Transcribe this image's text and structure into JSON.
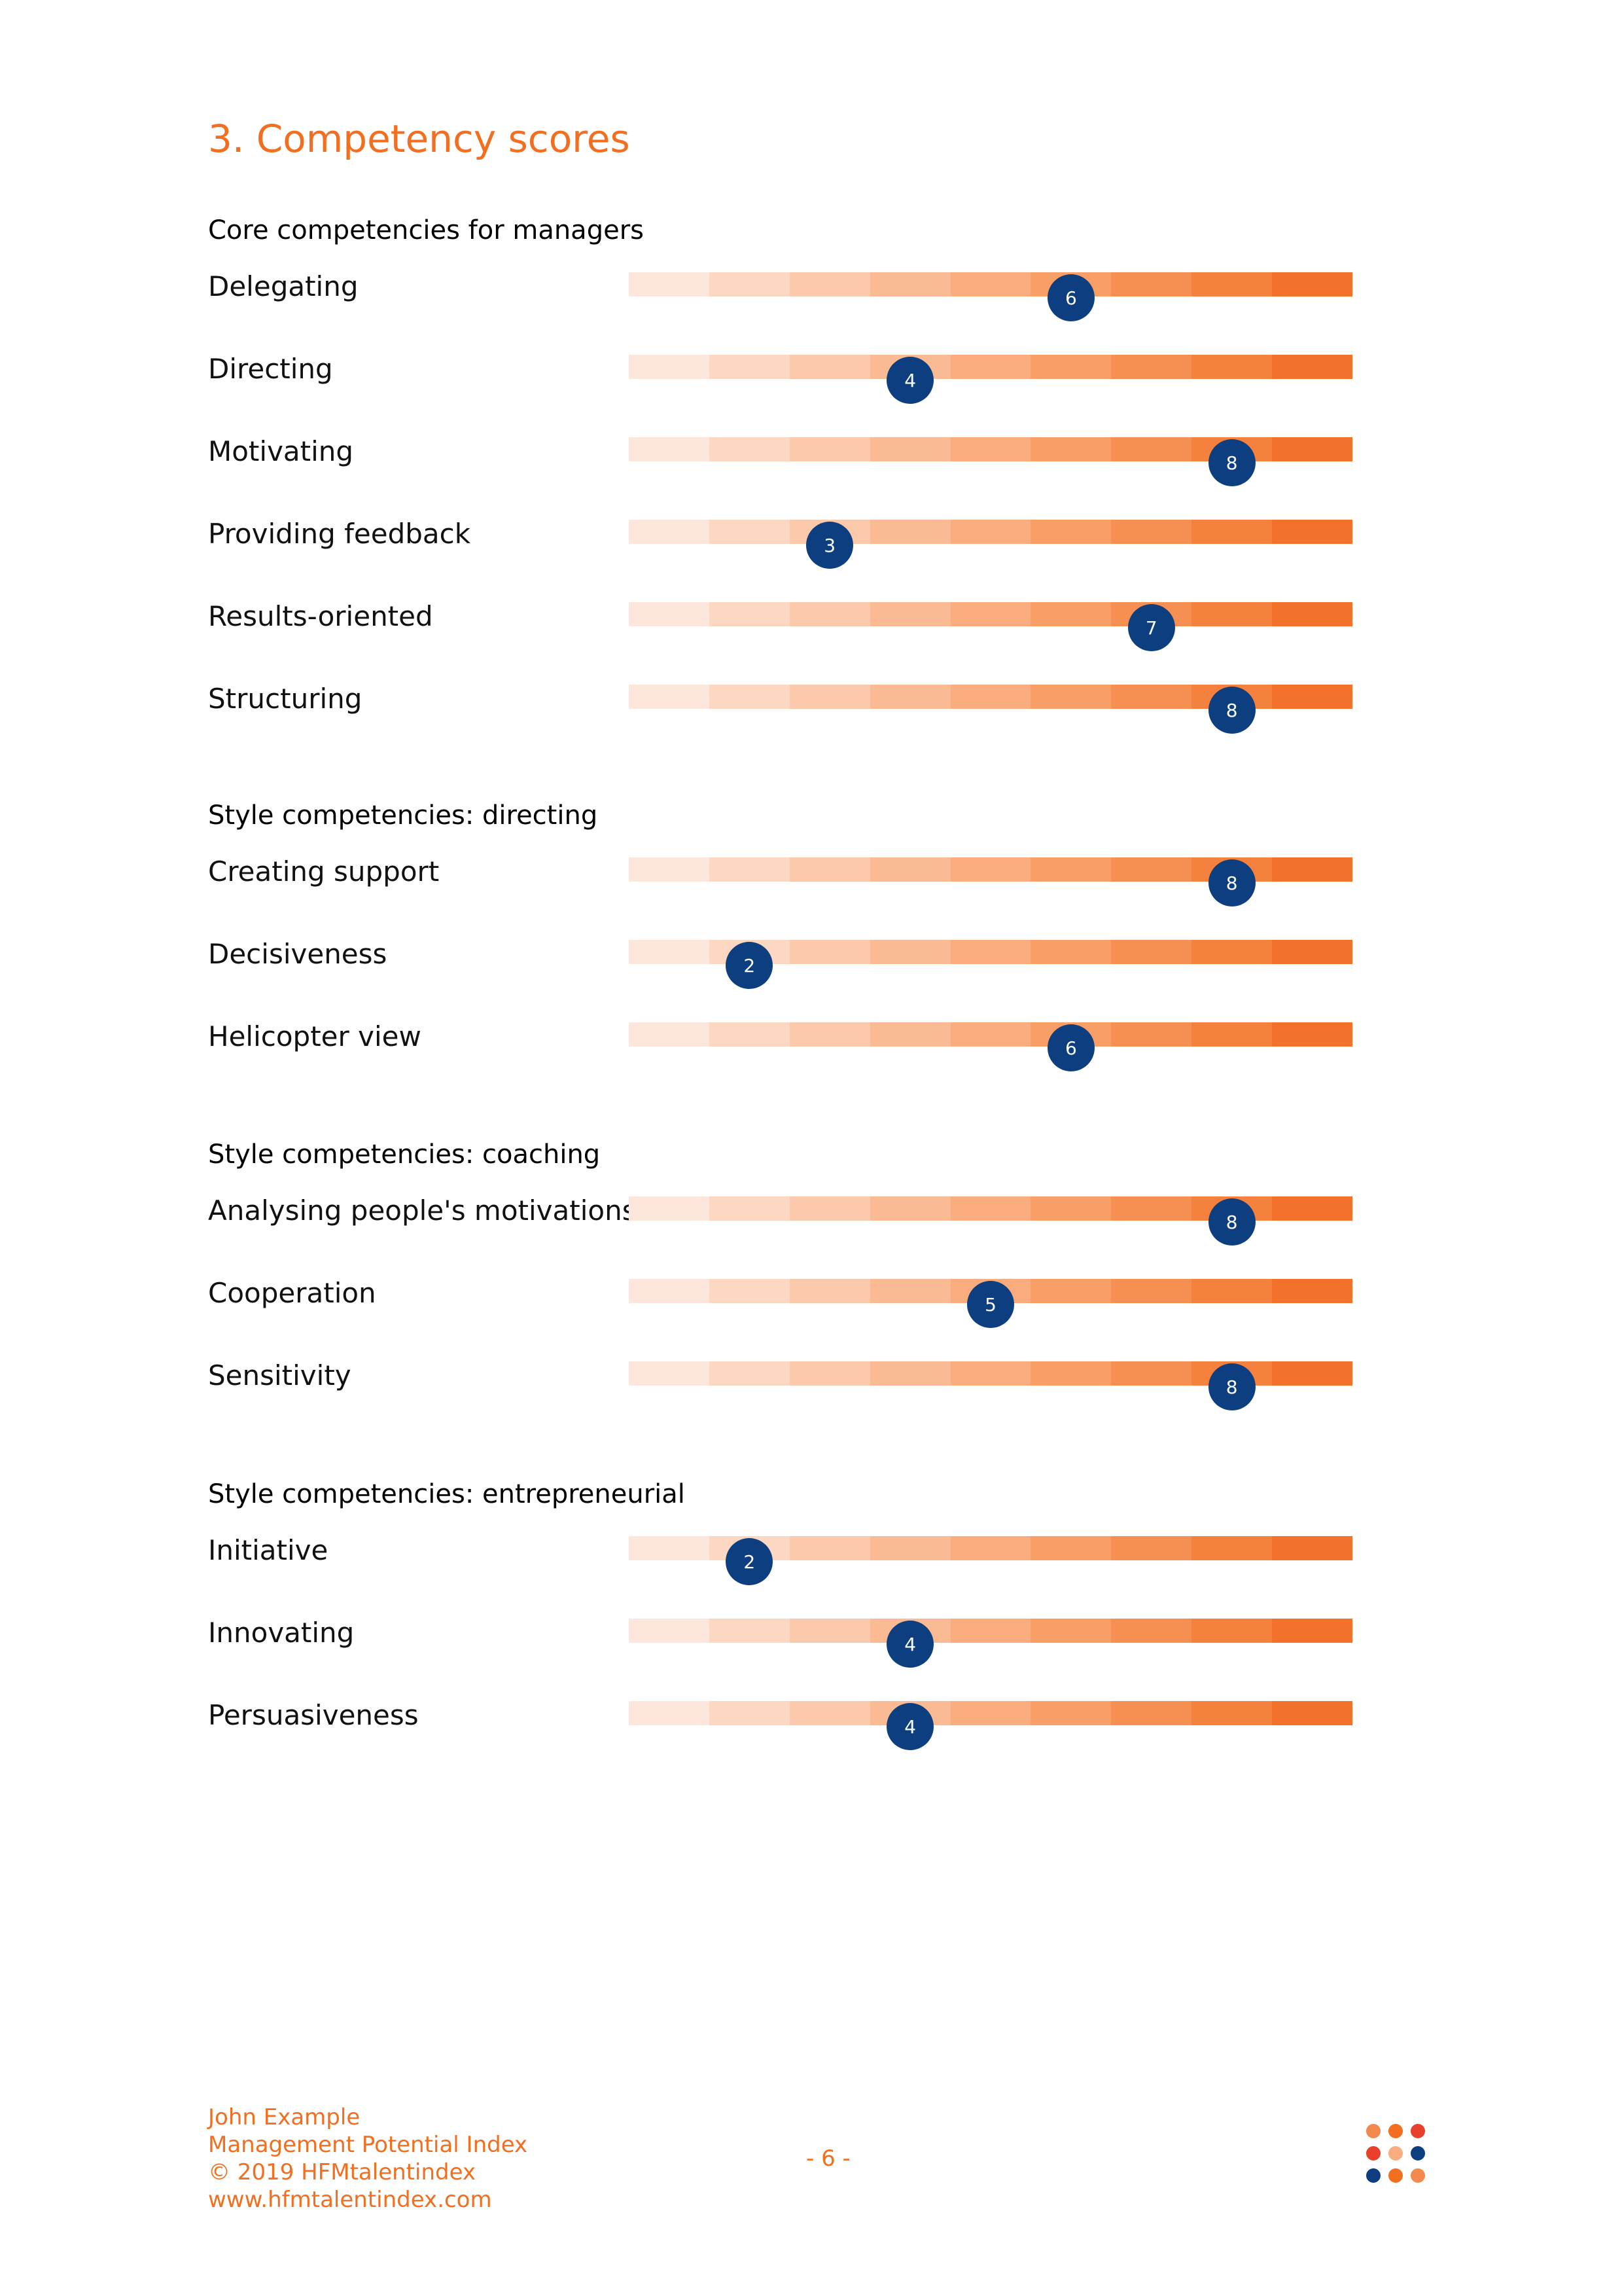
{
  "page_title": "3. Competency scores",
  "scale_colors": [
    "#fde7dc",
    "#fcd8c3",
    "#fbc9ab",
    "#fabb94",
    "#f9ac7d",
    "#f89e67",
    "#f68f52",
    "#f5813e",
    "#f3722b"
  ],
  "scale_max": 9,
  "marker_color": "#0d3f80",
  "sections": [
    {
      "heading": "Core competencies for managers",
      "items": [
        {
          "label": "Delegating",
          "score": 6
        },
        {
          "label": "Directing",
          "score": 4
        },
        {
          "label": "Motivating",
          "score": 8
        },
        {
          "label": "Providing feedback",
          "score": 3
        },
        {
          "label": "Results-oriented",
          "score": 7
        },
        {
          "label": "Structuring",
          "score": 8
        }
      ]
    },
    {
      "heading": "Style competencies: directing",
      "items": [
        {
          "label": "Creating support",
          "score": 8
        },
        {
          "label": "Decisiveness",
          "score": 2
        },
        {
          "label": "Helicopter view",
          "score": 6
        }
      ]
    },
    {
      "heading": "Style competencies: coaching",
      "items": [
        {
          "label": "Analysing people's motivations",
          "score": 8
        },
        {
          "label": "Cooperation",
          "score": 5
        },
        {
          "label": "Sensitivity",
          "score": 8
        }
      ]
    },
    {
      "heading": "Style competencies: entrepreneurial",
      "items": [
        {
          "label": "Initiative",
          "score": 2
        },
        {
          "label": "Innovating",
          "score": 4
        },
        {
          "label": "Persuasiveness",
          "score": 4
        }
      ]
    }
  ],
  "footer": {
    "name": "John Example",
    "report": "Management Potential Index",
    "copyright": "© 2019 HFMtalentindex",
    "website": "www.hfmtalentindex.com",
    "page_number": "- 6 -"
  },
  "logo": {
    "icon": "hfm-dots-logo",
    "dot_colors": [
      "#f4894e",
      "#f26f21",
      "#e8402a",
      "#e8402a",
      "#f9ac7d",
      "#0d3f80",
      "#0d3f80",
      "#f26f21",
      "#f4894e"
    ]
  }
}
